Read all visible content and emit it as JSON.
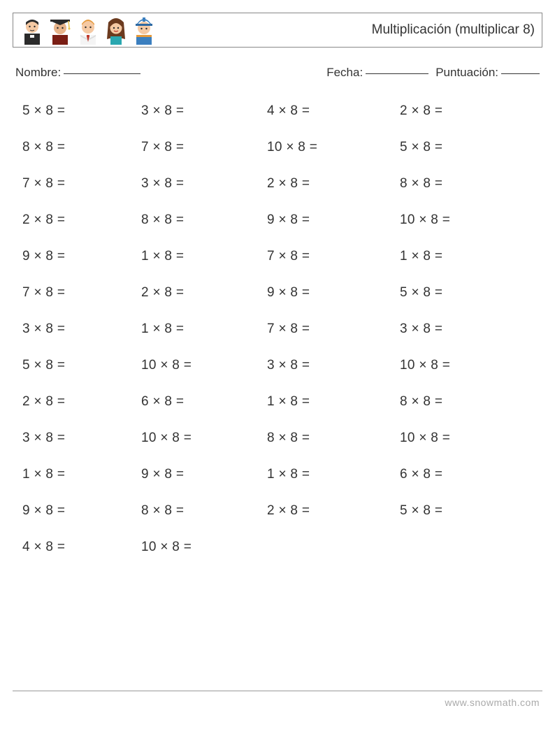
{
  "title": "Multiplicación (multiplicar 8)",
  "labels": {
    "name": "Nombre:",
    "date": "Fecha:",
    "score": "Puntuación:"
  },
  "avatars": {
    "skin1": "#f5c9a3",
    "skin2": "#e8b48a",
    "skin3": "#f5c9a3",
    "skin4": "#f5c9a3",
    "skin5": "#f5c9a3",
    "black": "#2b2b2b",
    "white": "#f4f4f4",
    "red": "#c0392b",
    "darkred": "#7a1e14",
    "orange": "#e59a3c",
    "brown": "#6b3a1e",
    "teal": "#2aa7b0",
    "blue": "#3b7fbf",
    "yellow": "#e8c34a"
  },
  "multiplier": 8,
  "op": "×",
  "eq": "=",
  "problems": [
    [
      5,
      3,
      4,
      2
    ],
    [
      8,
      7,
      10,
      5
    ],
    [
      7,
      3,
      2,
      8
    ],
    [
      2,
      8,
      9,
      10
    ],
    [
      9,
      1,
      7,
      1
    ],
    [
      7,
      2,
      9,
      5
    ],
    [
      3,
      1,
      7,
      3
    ],
    [
      5,
      10,
      3,
      10
    ],
    [
      2,
      6,
      1,
      8
    ],
    [
      3,
      10,
      8,
      10
    ],
    [
      1,
      9,
      1,
      6
    ],
    [
      9,
      8,
      2,
      5
    ],
    [
      4,
      10,
      null,
      null
    ]
  ],
  "footer": "www.snowmath.com"
}
